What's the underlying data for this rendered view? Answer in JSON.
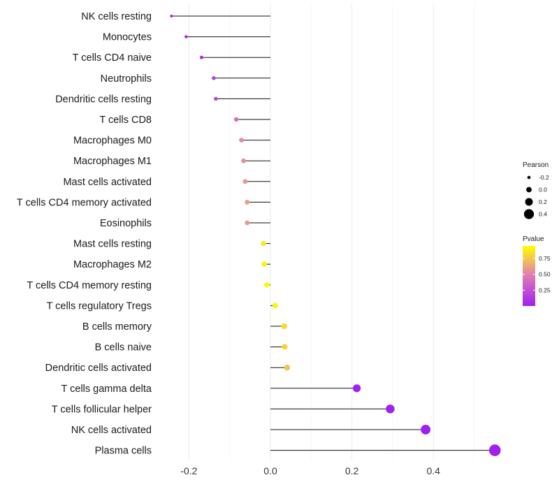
{
  "chart_data": {
    "type": "lollipop",
    "categories": [
      "NK cells resting",
      "Monocytes",
      "T cells CD4 naive",
      "Neutrophils",
      "Dendritic cells resting",
      "T cells CD8",
      "Macrophages M0",
      "Macrophages M1",
      "Mast cells activated",
      "T cells CD4 memory activated",
      "Eosinophils",
      "Mast cells resting",
      "Macrophages M2",
      "T cells CD4 memory resting",
      "T cells regulatory  Tregs ",
      "B cells memory",
      "B cells naive",
      "Dendritic cells activated",
      "T cells gamma delta",
      "T cells follicular helper",
      "NK cells activated",
      "Plasma cells"
    ],
    "pearson": [
      -0.243,
      -0.207,
      -0.169,
      -0.139,
      -0.134,
      -0.084,
      -0.071,
      -0.066,
      -0.062,
      -0.057,
      -0.057,
      -0.017,
      -0.015,
      -0.009,
      0.012,
      0.034,
      0.035,
      0.041,
      0.212,
      0.294,
      0.381,
      0.551
    ],
    "pvalue": [
      0.005,
      0.02,
      0.08,
      0.18,
      0.2,
      0.42,
      0.52,
      0.55,
      0.58,
      0.6,
      0.6,
      0.88,
      0.9,
      0.94,
      0.92,
      0.82,
      0.8,
      0.74,
      0.0,
      0.0,
      0.0,
      0.0
    ],
    "xlim": [
      -0.26,
      0.56
    ],
    "xticks": [
      -0.2,
      0.0,
      0.2,
      0.4
    ],
    "xtick_labels": [
      "-0.2",
      "0.0",
      "0.2",
      "0.4"
    ],
    "size_legend": {
      "title": "Pearson",
      "values": [
        -0.2,
        0.0,
        0.2,
        0.4
      ],
      "labels": [
        "-0.2",
        "0.0",
        "0.2",
        "0.4"
      ]
    },
    "color_legend": {
      "title": "Pvalue",
      "range": [
        0.0,
        0.95
      ],
      "ticks": [
        0.25,
        0.5,
        0.75
      ],
      "labels": [
        "0.25",
        "0.50",
        "0.75"
      ],
      "low_color": "#a020f0",
      "high_color": "#ffff00"
    },
    "grid": true,
    "legend_position": "right"
  }
}
